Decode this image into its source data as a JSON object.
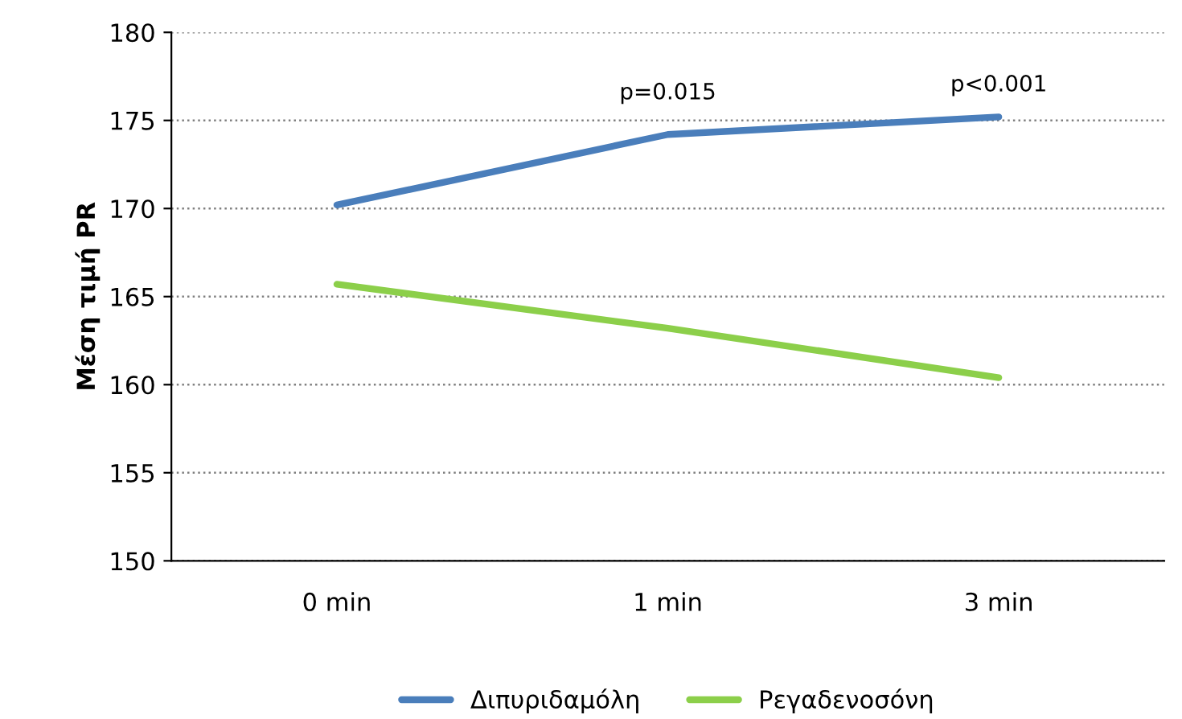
{
  "chart_data": {
    "type": "line",
    "ylabel": "Μέση τιμή PR",
    "categories": [
      "0 min",
      "1 min",
      "3 min"
    ],
    "series": [
      {
        "name": "Διπυριδαμόλη",
        "color": "#4a7ebb",
        "values": [
          170.2,
          174.2,
          175.2
        ]
      },
      {
        "name": "Ρεγαδενοσόνη",
        "color": "#8ccf4a",
        "values": [
          165.7,
          163.2,
          160.4
        ]
      }
    ],
    "ylim": [
      150,
      180
    ],
    "yticks": [
      150,
      155,
      160,
      165,
      170,
      175,
      180
    ],
    "grid": "y",
    "legend": "bottom",
    "marker": "none",
    "line_style": "solid",
    "annotations": [
      "p=0.015",
      "p<0.001"
    ]
  }
}
